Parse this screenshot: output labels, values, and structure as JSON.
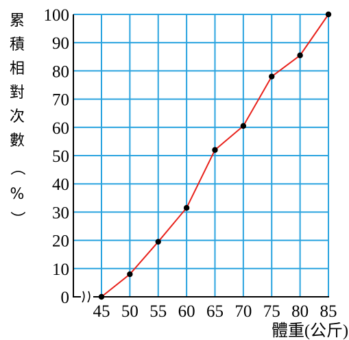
{
  "chart_data": {
    "type": "line",
    "title": "",
    "xlabel": "體重(公斤)",
    "ylabel_chars": [
      "累",
      "積",
      "相",
      "對",
      "次",
      "數",
      "（",
      "%",
      "）"
    ],
    "x_ticks": [
      "45",
      "50",
      "55",
      "60",
      "65",
      "70",
      "75",
      "80",
      "85"
    ],
    "y_ticks": [
      "0",
      "10",
      "20",
      "30",
      "40",
      "50",
      "60",
      "70",
      "80",
      "90",
      "100"
    ],
    "xlim": [
      45,
      85
    ],
    "ylim": [
      0,
      100
    ],
    "axis_break": "x",
    "grid": true,
    "colors": {
      "grid": "#29a3df",
      "line": "#e8211b",
      "point": "#000000",
      "axis": "#000000"
    },
    "series": [
      {
        "x": [
          45,
          50,
          55,
          60,
          65,
          70,
          75,
          80,
          85
        ],
        "values": [
          0,
          8,
          19.5,
          31.5,
          52,
          60.5,
          78,
          85.5,
          100
        ]
      }
    ]
  }
}
